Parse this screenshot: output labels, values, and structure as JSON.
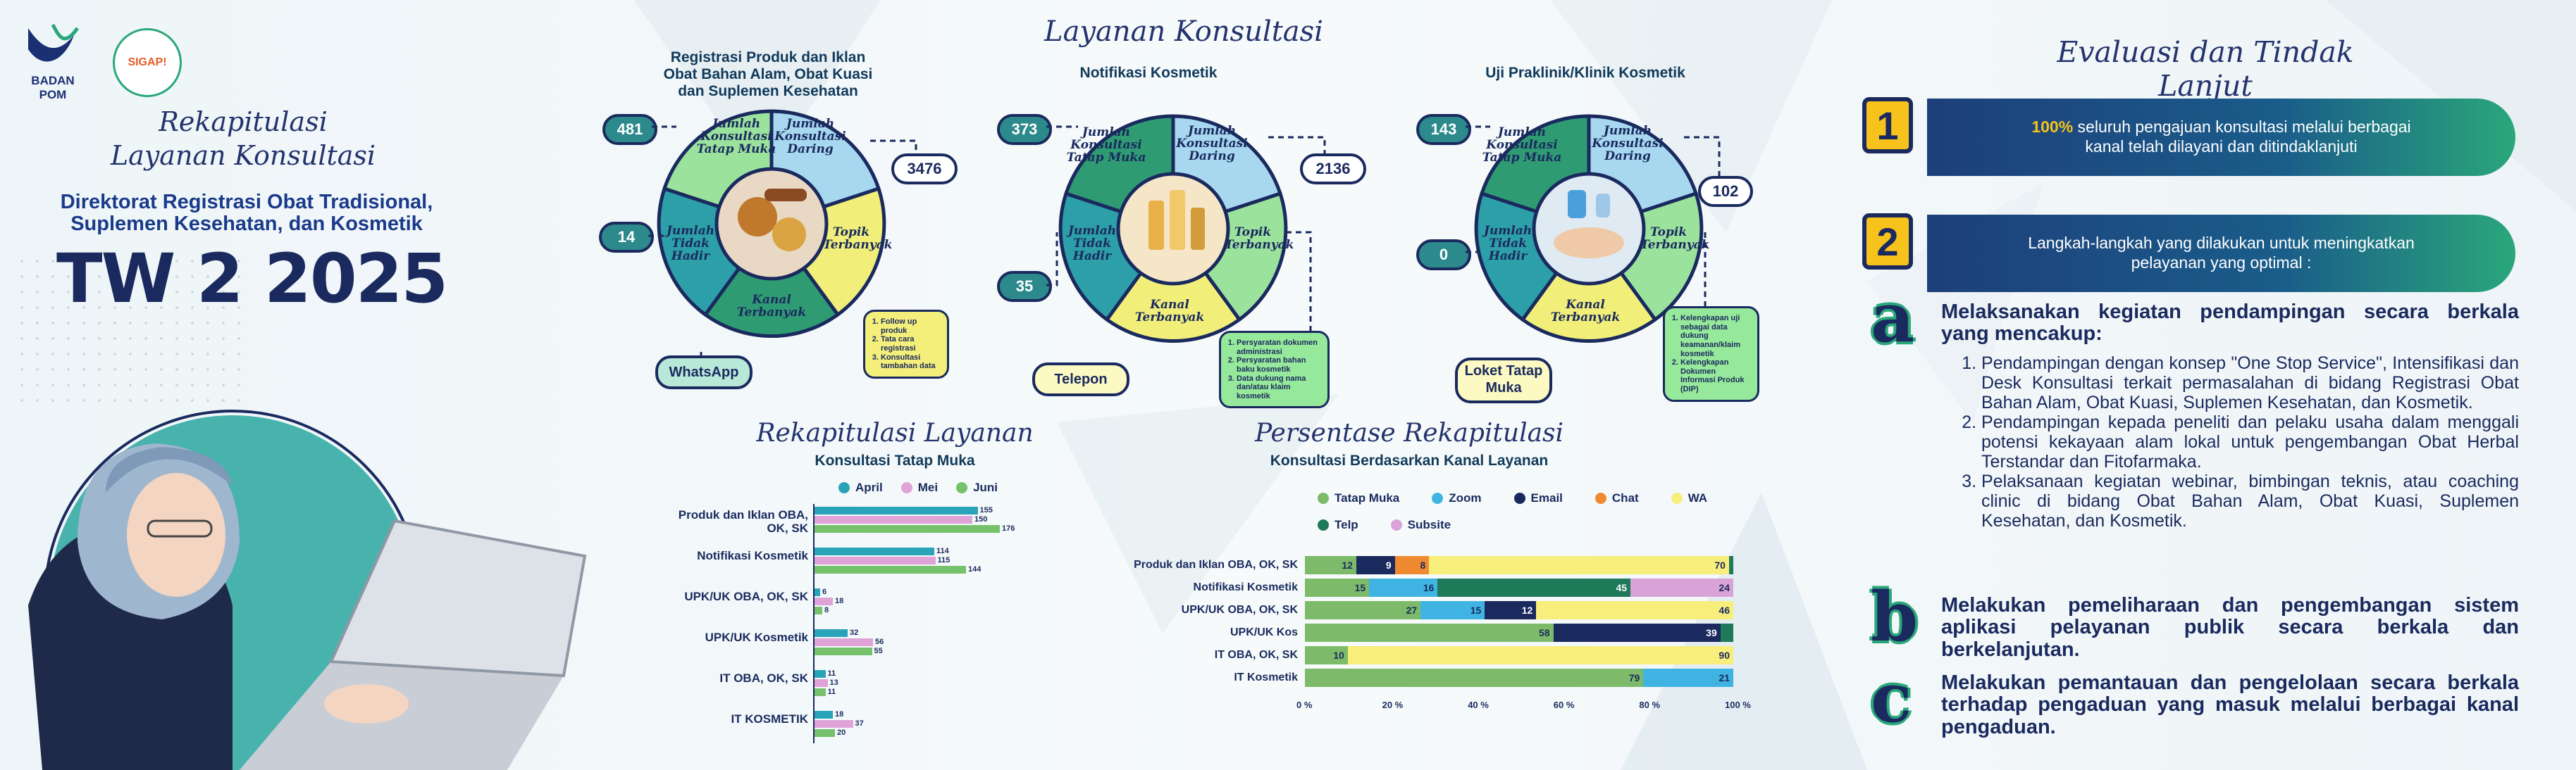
{
  "brand": {
    "logo1_text": "BADAN POM",
    "logo2_text": "SIGAP!"
  },
  "left": {
    "title_line1": "Rekapitulasi",
    "title_line2": "Layanan Konsultasi",
    "subtitle_line1": "Direktorat Registrasi Obat Tradisional,",
    "subtitle_line2": "Suplemen Kesehatan, dan Kosmetik",
    "period": "TW 2 2025"
  },
  "layanan": {
    "heading": "Layanan Konsultasi",
    "segment_labels": {
      "tatap_muka": "Jumlah Konsultasi Tatap Muka",
      "daring": "Jumlah Konsultasi Daring",
      "topik": "Topik Terbanyak",
      "kanal": "Kanal Terbanyak",
      "tidak_hadir": "Jumlah Tidak Hadir"
    },
    "wheels": [
      {
        "title_line1": "Registrasi Produk dan Iklan",
        "title_line2": "Obat Bahan Alam, Obat Kuasi",
        "title_line3": "dan Suplemen Kesehatan",
        "tatap_muka": "481",
        "daring": "3476",
        "tidak_hadir": "14",
        "kanal": "WhatsApp",
        "topik": [
          "Follow up produk",
          "Tata cara registrasi",
          "Konsultasi tambahan data"
        ]
      },
      {
        "title_line1": "Notifikasi Kosmetik",
        "title_line2": "",
        "title_line3": "",
        "tatap_muka": "373",
        "daring": "2136",
        "tidak_hadir": "35",
        "kanal": "Telepon",
        "topik": [
          "Persyaratan dokumen administrasi",
          "Persyaratan bahan baku kosmetik",
          "Data dukung nama dan/atau klaim kosmetik"
        ]
      },
      {
        "title_line1": "Uji Praklinik/Klinik Kosmetik",
        "title_line2": "",
        "title_line3": "",
        "tatap_muka": "143",
        "daring": "102",
        "tidak_hadir": "0",
        "kanal": "Loket Tatap Muka",
        "topik": [
          "Kelengkapan uji sebagai data dukung keamanan/klaim kosmetik",
          "Kelengkapan Dokumen Informasi Produk (DIP)"
        ]
      }
    ]
  },
  "tatap_muka_chart": {
    "heading": "Rekapitulasi Layanan",
    "subheading": "Konsultasi Tatap Muka",
    "chart_data": {
      "type": "bar",
      "categories": [
        "Produk dan Iklan OBA, OK, SK",
        "Notifikasi Kosmetik",
        "UPK/UK OBA, OK, SK",
        "UPK/UK Kosmetik",
        "IT OBA, OK, SK",
        "IT KOSMETIK"
      ],
      "series": [
        {
          "name": "April",
          "values": [
            155,
            114,
            6,
            32,
            11,
            18
          ]
        },
        {
          "name": "Mei",
          "values": [
            150,
            115,
            18,
            56,
            13,
            37
          ]
        },
        {
          "name": "Juni",
          "values": [
            176,
            144,
            8,
            55,
            11,
            20
          ]
        }
      ],
      "colors": [
        "#29a3b8",
        "#e0a3d8",
        "#76c26c"
      ]
    }
  },
  "persentase_chart": {
    "heading": "Persentase Rekapitulasi",
    "subheading": "Konsultasi Berdasarkan Kanal Layanan",
    "chart_data": {
      "type": "bar",
      "stacked": true,
      "categories": [
        "Produk dan Iklan OBA, OK, SK",
        "Notifikasi Kosmetik",
        "UPK/UK OBA, OK, SK",
        "UPK/UK Kos",
        "IT OBA, OK, SK",
        "IT Kosmetik"
      ],
      "series": [
        {
          "name": "Tatap Muka",
          "values": [
            12,
            15,
            27,
            58,
            10,
            79
          ]
        },
        {
          "name": "Zoom",
          "values": [
            0,
            16,
            15,
            0,
            0,
            21
          ]
        },
        {
          "name": "Email",
          "values": [
            9,
            0,
            12,
            39,
            0,
            0
          ]
        },
        {
          "name": "Chat",
          "values": [
            8,
            0,
            0,
            0,
            0,
            0
          ]
        },
        {
          "name": "WA",
          "values": [
            70,
            0,
            46,
            0,
            90,
            0
          ]
        },
        {
          "name": "Telp",
          "values": [
            1,
            45,
            0,
            3,
            0,
            0
          ]
        },
        {
          "name": "Subsite",
          "values": [
            0,
            24,
            0,
            0,
            0,
            0
          ]
        }
      ],
      "labels": [
        [
          "12",
          "",
          "9",
          "8",
          "70",
          "",
          ""
        ],
        [
          "15",
          "16",
          "",
          "",
          "",
          "45",
          "24"
        ],
        [
          "27",
          "15",
          "12",
          "",
          "46",
          "",
          ""
        ],
        [
          "58",
          "",
          "39",
          "",
          "",
          "",
          ""
        ],
        [
          "10",
          "",
          "",
          "",
          "90",
          "",
          ""
        ],
        [
          "79",
          "21",
          "",
          "",
          "",
          "",
          ""
        ]
      ],
      "colors": [
        "#7dbb6a",
        "#3fb4e3",
        "#1b2a5e",
        "#f08a30",
        "#f7ee7c",
        "#1f7a5a",
        "#d9a3d8"
      ],
      "xticks": [
        "0 %",
        "20 %",
        "40 %",
        "60 %",
        "80 %",
        "100 %"
      ],
      "xlim": [
        0,
        100
      ]
    }
  },
  "evaluasi": {
    "heading": "Evaluasi dan Tindak Lanjut",
    "item1_number": "1",
    "item1_highlight": "100%",
    "item1_text_a": " seluruh pengajuan konsultasi melalui berbagai",
    "item1_text_b": "kanal telah dilayani dan ditindaklanjuti",
    "item2_number": "2",
    "item2_text_a": "Langkah-langkah yang dilakukan untuk meningkatkan",
    "item2_text_b": "pelayanan yang optimal :",
    "a_letter": "a",
    "a_text": "Melaksanakan kegiatan pendampingan secara berkala yang mencakup:",
    "a_list": [
      "Pendampingan dengan konsep \"One Stop Service\", Intensifikasi dan Desk Konsultasi terkait permasalahan di bidang Registrasi Obat Bahan Alam, Obat Kuasi, Suplemen Kesehatan, dan Kosmetik.",
      "Pendampingan kepada peneliti dan pelaku usaha dalam menggali potensi kekayaan alam lokal untuk pengembangan Obat Herbal Terstandar dan Fitofarmaka.",
      "Pelaksanaan kegiatan webinar, bimbingan teknis, atau coaching clinic di bidang Obat Bahan Alam, Obat Kuasi, Suplemen Kesehatan, dan Kosmetik."
    ],
    "b_letter": "b",
    "b_text": "Melakukan pemeliharaan dan pengembangan sistem aplikasi pelayanan publik secara berkala dan berkelanjutan.",
    "c_letter": "c",
    "c_text": "Melakukan pemantauan dan pengelolaan  secara berkala terhadap pengaduan yang masuk melalui berbagai kanal pengaduan."
  }
}
